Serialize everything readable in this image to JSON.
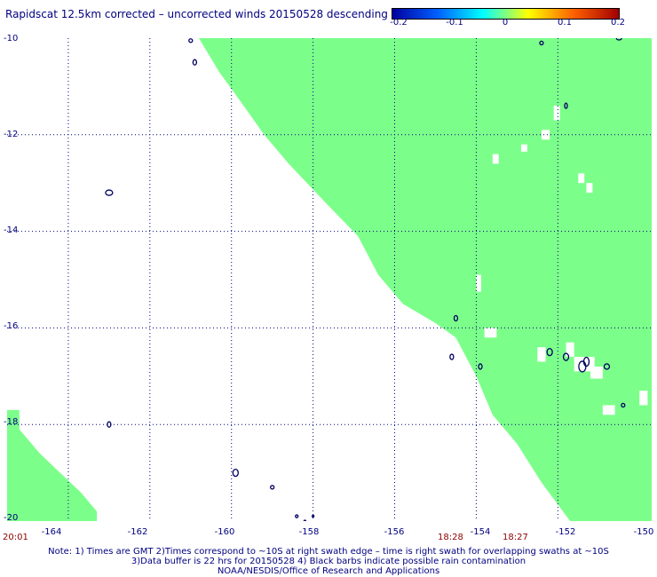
{
  "title": "Rapidscat 12.5km corrected – uncorrected winds 20150528 descending",
  "colorbar": {
    "ticks": [
      "-0.2",
      "-0.1",
      "0",
      "0.1",
      "0.2"
    ],
    "colors": [
      "#0000a0",
      "#0060ff",
      "#00ffff",
      "#ffff00",
      "#ff6000",
      "#a00000"
    ]
  },
  "y_axis_labels": [
    "-10",
    "-12",
    "-14",
    "-16",
    "-18",
    "-20"
  ],
  "x_axis_labels": [
    "-164",
    "-162",
    "-160",
    "-158",
    "-156",
    "-154",
    "-152",
    "-150"
  ],
  "time_labels": {
    "left": "20:01",
    "mid1": "18:28",
    "mid2": "18:27"
  },
  "notes": [
    "Note: 1) Times are GMT 2)Times correspond to ~10S at right swath edge – time is right swath for overlapping swaths at ~10S",
    "3)Data buffer is 22 hrs for 20150528 4) Black barbs indicate possible rain contamination",
    "NOAA/NESDIS/Office of Research and Applications"
  ],
  "map": {
    "lon_range": [
      -165.5,
      -149.7
    ],
    "lat_range": [
      -20,
      -10
    ],
    "swath_color": "#7cff8a",
    "coast_color": "#000060",
    "grid_color": "#000080"
  }
}
